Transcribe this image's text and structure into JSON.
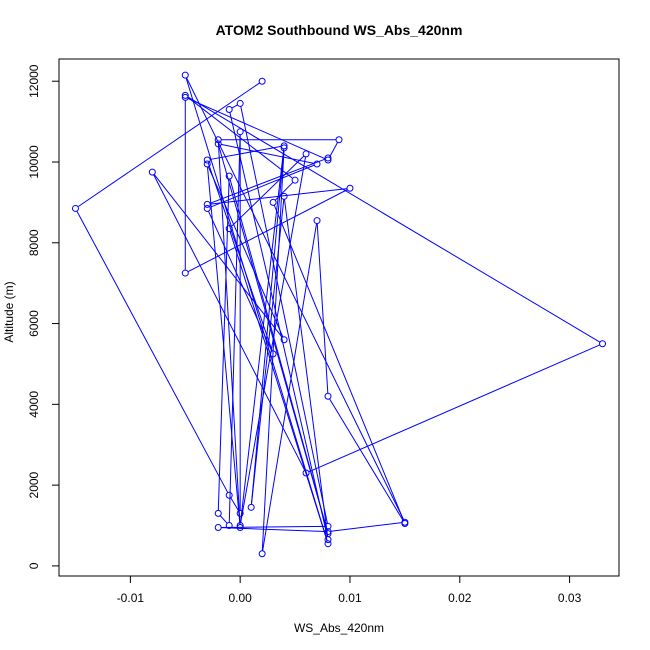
{
  "chart_data": {
    "type": "line",
    "title": "ATOM2 Southbound WS_Abs_420nm",
    "xlabel": "WS_Abs_420nm",
    "ylabel": "Altitude (m)",
    "xlim": [
      -0.0165,
      0.0345
    ],
    "ylim": [
      -250,
      12550
    ],
    "x_ticks": [
      -0.01,
      0.0,
      0.01,
      0.02,
      0.03
    ],
    "x_tick_labels": [
      "-0.01",
      "0.00",
      "0.01",
      "0.02",
      "0.03"
    ],
    "y_ticks": [
      0,
      2000,
      4000,
      6000,
      8000,
      10000,
      12000
    ],
    "y_tick_labels": [
      "0",
      "2000",
      "4000",
      "6000",
      "8000",
      "10000",
      "12000"
    ],
    "grid": false,
    "series": [
      {
        "color": "#0000ff",
        "marker": "open-circle",
        "points": [
          {
            "x": 0.002,
            "y": 12000
          },
          {
            "x": -0.015,
            "y": 8850
          },
          {
            "x": -0.001,
            "y": 1750
          },
          {
            "x": 0.0,
            "y": 1300
          },
          {
            "x": 0.0,
            "y": 10750
          },
          {
            "x": -0.001,
            "y": 1000
          },
          {
            "x": -0.002,
            "y": 1300
          },
          {
            "x": -0.001,
            "y": 9650
          },
          {
            "x": 0.008,
            "y": 800
          },
          {
            "x": -0.002,
            "y": 10450
          },
          {
            "x": 0.007,
            "y": 9950
          },
          {
            "x": -0.003,
            "y": 8850
          },
          {
            "x": 0.003,
            "y": 5250
          },
          {
            "x": -0.003,
            "y": 10050
          },
          {
            "x": 0.004,
            "y": 10400
          },
          {
            "x": 0.0,
            "y": 1000
          },
          {
            "x": 0.006,
            "y": 10200
          },
          {
            "x": -0.001,
            "y": 8350
          },
          {
            "x": 0.008,
            "y": 550
          },
          {
            "x": -0.005,
            "y": 12150
          },
          {
            "x": 0.015,
            "y": 1080
          },
          {
            "x": 0.008,
            "y": 850
          },
          {
            "x": -0.002,
            "y": 950
          },
          {
            "x": 0.008,
            "y": 980
          },
          {
            "x": 0.0,
            "y": 11450
          },
          {
            "x": -0.001,
            "y": 11300
          },
          {
            "x": 0.008,
            "y": 650
          },
          {
            "x": 0.004,
            "y": 9150
          },
          {
            "x": 0.001,
            "y": 1450
          },
          {
            "x": 0.004,
            "y": 10350
          },
          {
            "x": 0.002,
            "y": 300
          },
          {
            "x": 0.007,
            "y": 8550
          },
          {
            "x": 0.008,
            "y": 4200
          },
          {
            "x": 0.015,
            "y": 1050
          },
          {
            "x": 0.003,
            "y": 9000
          },
          {
            "x": 0.005,
            "y": 9550
          },
          {
            "x": -0.005,
            "y": 11650
          },
          {
            "x": 0.033,
            "y": 5500
          },
          {
            "x": 0.006,
            "y": 2300
          },
          {
            "x": -0.008,
            "y": 9750
          },
          {
            "x": 0.004,
            "y": 5600
          },
          {
            "x": -0.003,
            "y": 9950
          },
          {
            "x": 0.0,
            "y": 950
          },
          {
            "x": -0.002,
            "y": 10550
          },
          {
            "x": 0.009,
            "y": 10550
          },
          {
            "x": 0.008,
            "y": 10050
          },
          {
            "x": -0.005,
            "y": 11600
          },
          {
            "x": -0.005,
            "y": 7250
          },
          {
            "x": 0.01,
            "y": 9350
          },
          {
            "x": -0.003,
            "y": 8950
          },
          {
            "x": 0.008,
            "y": 10100
          }
        ]
      }
    ]
  }
}
